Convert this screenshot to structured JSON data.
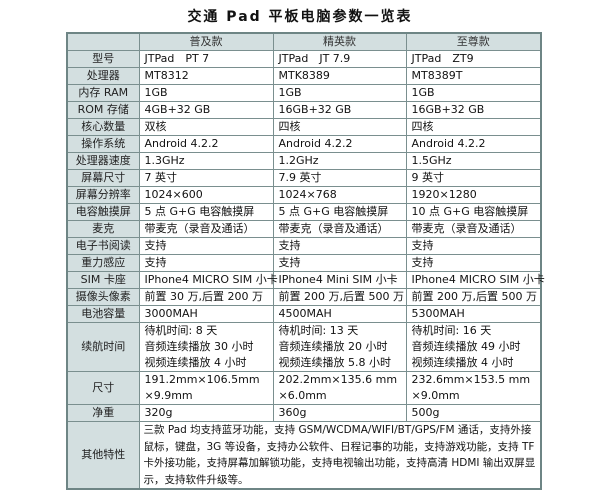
{
  "title": "交通 Pad 平板电脑参数一览表",
  "columns": [
    "",
    "普及款",
    "精英款",
    "至尊款"
  ],
  "rows": [
    {
      "label": "型号",
      "values": [
        "JTPad　PT 7",
        "JTPad　JT 7.9",
        "JTPad　ZT9"
      ]
    },
    {
      "label": "处理器",
      "values": [
        "MT8312",
        "MTK8389",
        "MT8389T"
      ]
    },
    {
      "label": "内存 RAM",
      "values": [
        "1GB",
        "1GB",
        "1GB"
      ]
    },
    {
      "label": "ROM 存储",
      "values": [
        "4GB+32 GB",
        "16GB+32 GB",
        "16GB+32 GB"
      ]
    },
    {
      "label": "核心数量",
      "values": [
        "双核",
        "四核",
        "四核"
      ]
    },
    {
      "label": "操作系统",
      "values": [
        "Android 4.2.2",
        "Android 4.2.2",
        "Android 4.2.2"
      ]
    },
    {
      "label": "处理器速度",
      "values": [
        "1.3GHz",
        "1.2GHz",
        "1.5GHz"
      ]
    },
    {
      "label": "屏幕尺寸",
      "values": [
        "7 英寸",
        "7.9 英寸",
        "9 英寸"
      ]
    },
    {
      "label": "屏幕分辨率",
      "values": [
        "1024×600",
        "1024×768",
        "1920×1280"
      ]
    },
    {
      "label": "电容触摸屏",
      "values": [
        "5 点 G+G 电容触摸屏",
        "5 点 G+G 电容触摸屏",
        "10 点 G+G 电容触摸屏"
      ]
    },
    {
      "label": "麦克",
      "values": [
        "带麦克（录音及通话）",
        "带麦克（录音及通话）",
        "带麦克（录音及通话）"
      ]
    },
    {
      "label": "电子书阅读",
      "values": [
        "支持",
        "支持",
        "支持"
      ]
    },
    {
      "label": "重力感应",
      "values": [
        "支持",
        "支持",
        "支持"
      ]
    },
    {
      "label": "SIM 卡座",
      "values": [
        "IPhone4 MICRO SIM 小卡",
        "IPhone4 Mini SIM 小卡",
        "IPhone4 MICRO SIM 小卡"
      ]
    },
    {
      "label": "摄像头像素",
      "values": [
        "前置 30 万,后置 200 万",
        "前置 200 万,后置 500 万",
        "前置 200 万,后置 500 万"
      ]
    },
    {
      "label": "电池容量",
      "values": [
        "3000MAH",
        "4500MAH",
        "5300MAH"
      ]
    }
  ],
  "battery_life": {
    "label": "续航时间",
    "values": [
      [
        "待机时间: 8 天",
        "音频连续播放 30 小时",
        "视频连续播放 4 小时"
      ],
      [
        "待机时间: 13 天",
        "音频连续播放 20 小时",
        "视频连续播放 5.8 小时"
      ],
      [
        "待机时间: 16 天",
        "音频连续播放 49 小时",
        "视频连续播放 4 小时"
      ]
    ]
  },
  "size": {
    "label": "尺寸",
    "values": [
      [
        "191.2mm×106.5mm",
        "×9.9mm"
      ],
      [
        "202.2mm×135.6 mm",
        "×6.0mm"
      ],
      [
        "232.6mm×153.5 mm",
        "×9.0mm"
      ]
    ]
  },
  "weight": {
    "label": "净重",
    "values": [
      "320g",
      "360g",
      "500g"
    ]
  },
  "other": {
    "label": "其他特性",
    "text": "三款 Pad 均支持蓝牙功能，支持 GSM/WCDMA/WIFI/BT/GPS/FM 通话，支持外接鼠标，键盘，3G 等设备，支持办公软件、日程记事的功能，支持游戏功能，支持 TF 卡外接功能，支持屏幕加解锁功能，支持电视输出功能，支持高清 HDMI 输出双屏显示，支持软件升级等。"
  }
}
